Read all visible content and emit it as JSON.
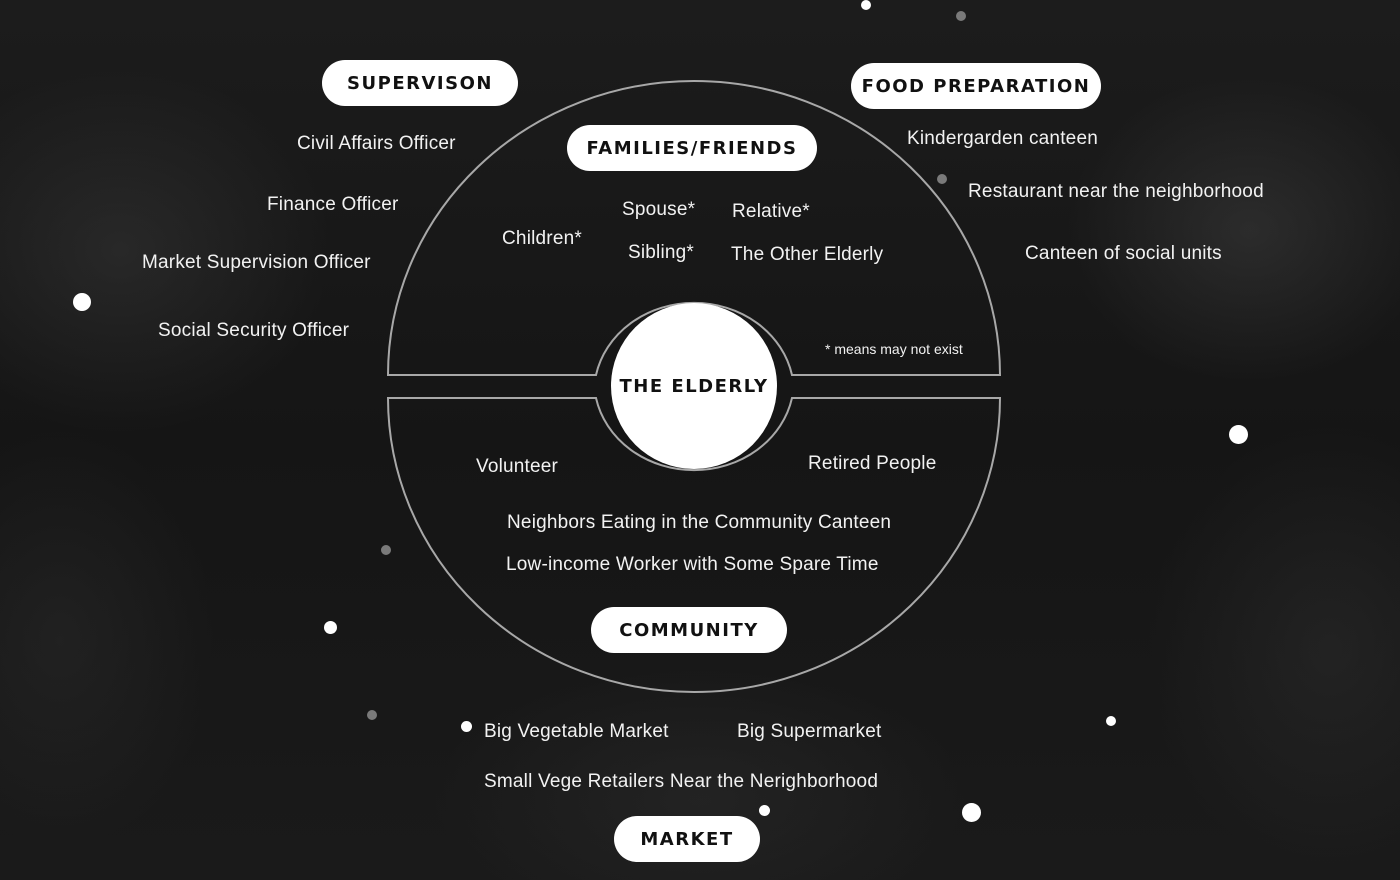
{
  "diagram": {
    "center": "THE ELDERLY",
    "note": "* means may not exist",
    "groups": {
      "supervision": {
        "title": "SUPERVISON",
        "items": [
          "Civil Affairs Officer",
          "Finance Officer",
          "Market Supervision Officer",
          "Social Security Officer"
        ]
      },
      "food_preparation": {
        "title": "FOOD PREPARATION",
        "items": [
          "Kindergarden canteen",
          "Restaurant near the neighborhood",
          "Canteen of social units"
        ]
      },
      "families_friends": {
        "title": "FAMILIES/FRIENDS",
        "items": [
          "Spouse*",
          "Relative*",
          "Children*",
          "Sibling*",
          "The Other Elderly"
        ]
      },
      "community": {
        "title": "COMMUNITY",
        "items": [
          "Volunteer",
          "Retired People",
          "Neighbors Eating in the Community Canteen",
          "Low-income Worker with Some Spare Time"
        ]
      },
      "market": {
        "title": "MARKET",
        "items": [
          "Big Vegetable Market",
          "Big Supermarket",
          "Small Vege Retailers Near the Nerighborhood"
        ]
      }
    }
  },
  "colors": {
    "background": "#141414",
    "pill": "#ffffff",
    "pill_text": "#111111",
    "text": "#f2f2f2",
    "outline": "#a8a8a8"
  }
}
